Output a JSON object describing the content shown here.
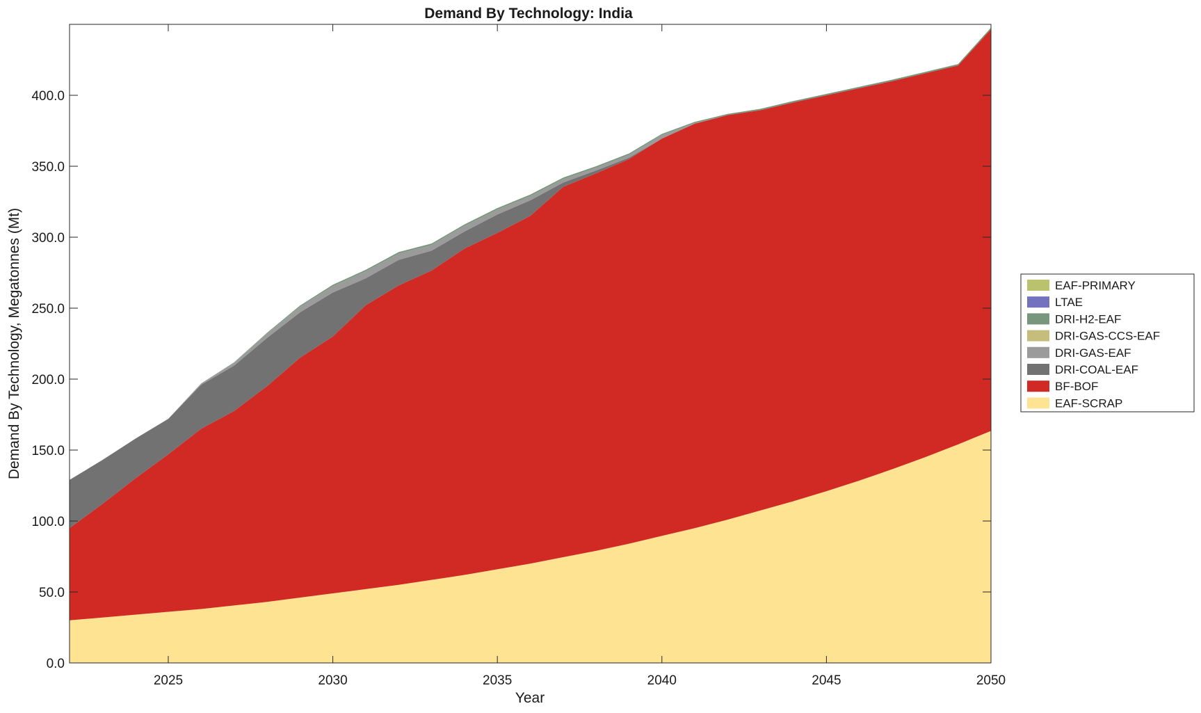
{
  "chart_data": {
    "type": "area",
    "title": "Demand By Technology: India",
    "xlabel": "Year",
    "ylabel": "Demand By Technology, Megatonnes (Mt)",
    "xlim": [
      2022,
      2050
    ],
    "ylim": [
      0,
      450
    ],
    "x_ticks": [
      2025,
      2030,
      2035,
      2040,
      2045,
      2050
    ],
    "x_tick_labels": [
      "2025",
      "2030",
      "2035",
      "2040",
      "2045",
      "2050"
    ],
    "y_ticks": [
      0,
      50,
      100,
      150,
      200,
      250,
      300,
      350,
      400
    ],
    "y_tick_labels": [
      "0.0",
      "50.0",
      "100.0",
      "150.0",
      "200.0",
      "250.0",
      "300.0",
      "350.0",
      "400.0"
    ],
    "grid": false,
    "stacked": true,
    "legend_position": "outside-right",
    "legend_order": [
      "EAF-PRIMARY",
      "LTAE",
      "DRI-H2-EAF",
      "DRI-GAS-CCS-EAF",
      "DRI-GAS-EAF",
      "DRI-COAL-EAF",
      "BF-BOF",
      "EAF-SCRAP"
    ],
    "x": [
      2022,
      2023,
      2024,
      2025,
      2026,
      2027,
      2028,
      2029,
      2030,
      2031,
      2032,
      2033,
      2034,
      2035,
      2036,
      2037,
      2038,
      2039,
      2040,
      2041,
      2042,
      2043,
      2044,
      2045,
      2046,
      2047,
      2048,
      2049,
      2050
    ],
    "series": [
      {
        "name": "EAF-SCRAP",
        "color": "#fde392",
        "values": [
          30,
          32,
          34,
          36,
          38,
          40.5,
          43,
          46,
          49,
          52,
          55,
          58.5,
          62,
          66,
          70,
          74.5,
          79,
          84,
          89.5,
          95,
          101,
          107.5,
          114,
          121,
          128.5,
          136.5,
          145,
          154,
          163.5
        ]
      },
      {
        "name": "BF-BOF",
        "color": "#d12a24",
        "values": [
          65,
          80,
          96,
          111,
          127,
          137,
          152,
          169,
          181,
          200,
          211,
          218,
          230,
          237,
          245,
          261,
          266,
          271,
          280,
          285,
          285,
          282,
          281,
          279,
          276.5,
          273.5,
          270.5,
          267,
          283
        ]
      },
      {
        "name": "DRI-COAL-EAF",
        "color": "#727272",
        "values": [
          34,
          31,
          28,
          25,
          31,
          32,
          34,
          32,
          31,
          19,
          18,
          14,
          12,
          13,
          11,
          3,
          2,
          1,
          0,
          0,
          0,
          0,
          0,
          0,
          0,
          0,
          0,
          0,
          0
        ]
      },
      {
        "name": "DRI-GAS-EAF",
        "color": "#9b9b9b",
        "values": [
          0,
          0,
          0,
          0,
          1,
          2,
          3,
          4,
          4.5,
          5,
          4.5,
          4,
          4,
          3.5,
          3,
          2.5,
          2,
          2,
          2.5,
          0.5,
          0,
          0,
          0,
          0,
          0,
          0,
          0,
          0,
          0
        ]
      },
      {
        "name": "DRI-GAS-CCS-EAF",
        "color": "#c5bd7c",
        "values": [
          0,
          0,
          0,
          0,
          0,
          0,
          0,
          0,
          0,
          0,
          0,
          0,
          0,
          0,
          0,
          0,
          0,
          0,
          0,
          0,
          0,
          0,
          0,
          0,
          0,
          0,
          0,
          0,
          0
        ]
      },
      {
        "name": "DRI-H2-EAF",
        "color": "#77967c",
        "values": [
          0,
          0,
          0,
          0,
          0,
          0.3,
          0.6,
          0.8,
          1,
          1,
          1,
          1,
          1,
          1,
          1,
          1,
          1,
          1,
          0.8,
          0.8,
          0.9,
          1,
          1,
          1,
          1,
          1,
          1,
          1,
          1.2
        ]
      },
      {
        "name": "LTAE",
        "color": "#7471bf",
        "values": [
          0,
          0,
          0,
          0,
          0,
          0,
          0,
          0,
          0,
          0,
          0,
          0,
          0,
          0,
          0,
          0,
          0,
          0,
          0,
          0,
          0,
          0,
          0,
          0,
          0,
          0,
          0,
          0,
          0
        ]
      },
      {
        "name": "EAF-PRIMARY",
        "color": "#bbc26e",
        "values": [
          0,
          0,
          0,
          0,
          0,
          0,
          0,
          0,
          0,
          0,
          0,
          0,
          0,
          0,
          0,
          0,
          0,
          0,
          0,
          0,
          0,
          0,
          0,
          0,
          0,
          0,
          0,
          0,
          0
        ]
      }
    ]
  }
}
